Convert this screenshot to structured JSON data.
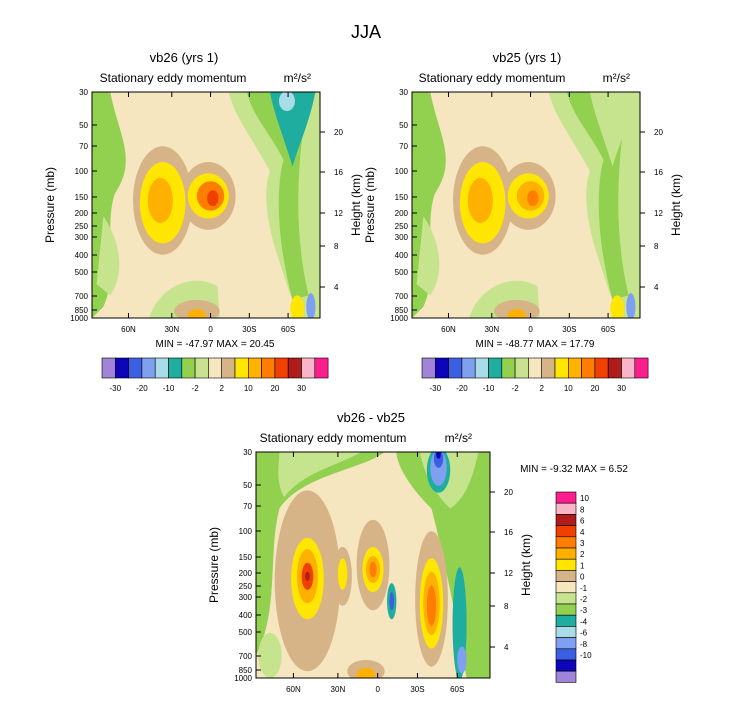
{
  "figure": {
    "season": "JJA",
    "chart_data": [
      {
        "type": "contour",
        "title": "vb26 (yrs 1)",
        "subtitle": "Stationary eddy momentum",
        "units": "m²/s²",
        "xlabel": "",
        "ylabel": "Pressure (mb)",
        "y2label": "Height (km)",
        "x_ticks": [
          "60N",
          "30N",
          "0",
          "30S",
          "60S"
        ],
        "y_ticks": [
          "30",
          "50",
          "70",
          "100",
          "150",
          "200",
          "250",
          "300",
          "400",
          "500",
          "700",
          "850",
          "1000"
        ],
        "y2_ticks": [
          "4",
          "8",
          "12",
          "16",
          "20"
        ],
        "stats": "MIN = -47.97  MAX = 20.45",
        "colorbar_labels": [
          "-30",
          "-20",
          "-10",
          "-2",
          "2",
          "10",
          "20",
          "30"
        ],
        "colorbar_colors": [
          "#9f84d8",
          "#0c06b8",
          "#3a5fe0",
          "#7fa0f0",
          "#a8dde8",
          "#1fada0",
          "#92d050",
          "#c6e48e",
          "#f5e6c0",
          "#d7b488",
          "#ffe600",
          "#ffb000",
          "#ff7d00",
          "#f04000",
          "#b01b1b",
          "#f7b6c8",
          "#ff1c8c"
        ],
        "features": [
          {
            "name": "max-30N",
            "lat": 30,
            "p": 175,
            "value": 10
          },
          {
            "name": "max-5N",
            "lat": 5,
            "p": 160,
            "value": 20
          },
          {
            "name": "min-55S",
            "lat": -55,
            "p": 40,
            "value": -10
          }
        ]
      },
      {
        "type": "contour",
        "title": "vb25 (yrs 1)",
        "subtitle": "Stationary eddy momentum",
        "units": "m²/s²",
        "ylabel": "Pressure (mb)",
        "y2label": "Height (km)",
        "x_ticks": [
          "60N",
          "30N",
          "0",
          "30S",
          "60S"
        ],
        "y_ticks": [
          "30",
          "50",
          "70",
          "100",
          "150",
          "200",
          "250",
          "300",
          "400",
          "500",
          "700",
          "850",
          "1000"
        ],
        "y2_ticks": [
          "4",
          "8",
          "12",
          "16",
          "20"
        ],
        "stats": "MIN = -48.77  MAX =  17.79",
        "colorbar_labels": [
          "-30",
          "-20",
          "-10",
          "-2",
          "2",
          "10",
          "20",
          "30"
        ],
        "colorbar_colors": [
          "#9f84d8",
          "#0c06b8",
          "#3a5fe0",
          "#7fa0f0",
          "#a8dde8",
          "#1fada0",
          "#92d050",
          "#c6e48e",
          "#f5e6c0",
          "#d7b488",
          "#ffe600",
          "#ffb000",
          "#ff7d00",
          "#f04000",
          "#b01b1b",
          "#f7b6c8",
          "#ff1c8c"
        ],
        "features": [
          {
            "name": "max-30N",
            "lat": 30,
            "p": 170,
            "value": 10
          },
          {
            "name": "max-5N",
            "lat": 5,
            "p": 155,
            "value": 10
          },
          {
            "name": "min-55S",
            "lat": -55,
            "p": 35,
            "value": -2
          }
        ]
      },
      {
        "type": "contour",
        "title": "vb26 - vb25",
        "subtitle": "Stationary eddy momentum",
        "units": "m²/s²",
        "ylabel": "Pressure (mb)",
        "y2label": "Height (km)",
        "x_ticks": [
          "60N",
          "30N",
          "0",
          "30S",
          "60S"
        ],
        "y_ticks": [
          "30",
          "50",
          "70",
          "100",
          "150",
          "200",
          "250",
          "300",
          "400",
          "500",
          "700",
          "850",
          "1000"
        ],
        "y2_ticks": [
          "4",
          "8",
          "12",
          "16",
          "20"
        ],
        "stats": "MIN =  -9.32  MAX =   6.52",
        "colorbar_labels": [
          "10",
          "8",
          "6",
          "4",
          "3",
          "2",
          "1",
          "0",
          "-1",
          "-2",
          "-3",
          "-4",
          "-6",
          "-8",
          "-10"
        ],
        "colorbar_colors": [
          "#ff1c8c",
          "#f7b6c8",
          "#b01b1b",
          "#f04000",
          "#ff7d00",
          "#ffb000",
          "#ffe600",
          "#d7b488",
          "#f5e6c0",
          "#c6e48e",
          "#92d050",
          "#1fada0",
          "#a8dde8",
          "#7fa0f0",
          "#3a5fe0",
          "#0c06b8",
          "#9f84d8"
        ],
        "features": [
          {
            "name": "max-40N",
            "lat": 40,
            "p": 200,
            "value": 6
          },
          {
            "name": "max-10N",
            "lat": 10,
            "p": 190,
            "value": 4
          },
          {
            "name": "max-40S",
            "lat": -40,
            "p": 300,
            "value": 4
          },
          {
            "name": "min-55S",
            "lat": -55,
            "p": 40,
            "value": -8
          }
        ]
      }
    ]
  }
}
